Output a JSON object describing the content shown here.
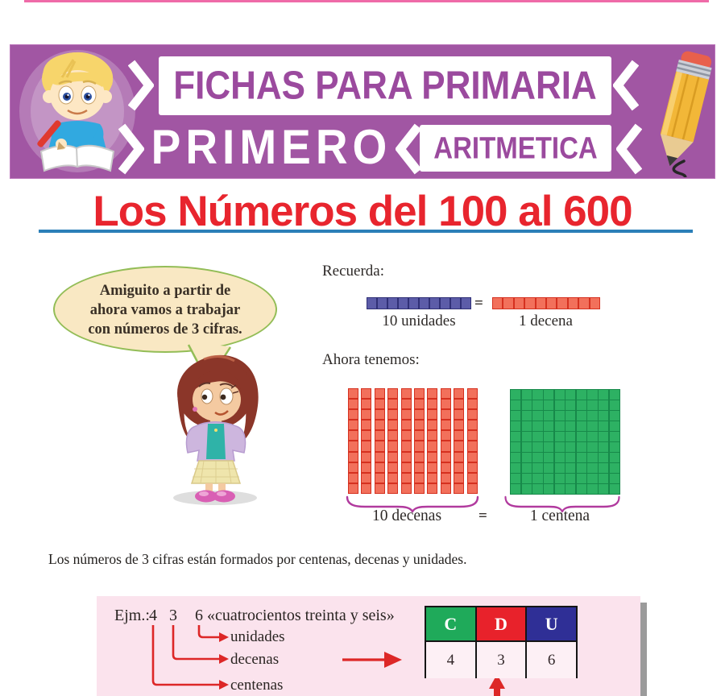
{
  "page": {
    "background": "#ffffff",
    "top_accent_color": "#ef6ba8"
  },
  "banner": {
    "background": "#a156a3",
    "text_color": "#9b4a9e",
    "line1": "FICHAS PARA PRIMARIA",
    "grade": "PRIMERO",
    "subject": "ARITMETICA",
    "icons": [
      "boy-writing-icon",
      "pencil-icon"
    ]
  },
  "title": {
    "text": "Los Números del 100 al 600",
    "color": "#e8252e",
    "underline_color": "#2b7fb8"
  },
  "speech_bubble": {
    "lines": [
      "Amiguito a partir de",
      "ahora vamos a trabajar",
      "con números de 3 cifras."
    ]
  },
  "recuerda": {
    "heading": "Recuerda:",
    "units": {
      "count": 10,
      "cell_color": "#5c5ca8",
      "border_color": "#303077",
      "label": "10 unidades"
    },
    "equals": "=",
    "decena": {
      "count": 10,
      "cell_color": "#f2705b",
      "border_color": "#d5301f",
      "label": "1 decena"
    }
  },
  "ahora": {
    "heading": "Ahora tenemos:",
    "decenas": {
      "columns": 10,
      "rows": 10,
      "cell_color": "#f2705b",
      "border_color": "#d5301f",
      "label": "10 decenas"
    },
    "equals": "=",
    "centena": {
      "rows": 10,
      "columns": 10,
      "cell_color": "#2db163",
      "line_color": "#17894a",
      "label": "1 centena"
    },
    "brace_color": "#b13a9e"
  },
  "body_text": "Los números de 3 cifras están formados por centenas, decenas y unidades.",
  "example_box": {
    "background": "#fbe3ed",
    "prefix": "Ejm.:",
    "digits": [
      "4",
      "3",
      "6"
    ],
    "quote": "«cuatrocientos treinta y seis»",
    "labels": [
      "unidades",
      "decenas",
      "centenas"
    ],
    "arrow_color": "#dd2727",
    "table": {
      "headers": [
        {
          "label": "C",
          "color": "#1faa5a"
        },
        {
          "label": "D",
          "color": "#e8222b"
        },
        {
          "label": "U",
          "color": "#2f2f96"
        }
      ],
      "values": [
        "4",
        "3",
        "6"
      ]
    }
  }
}
